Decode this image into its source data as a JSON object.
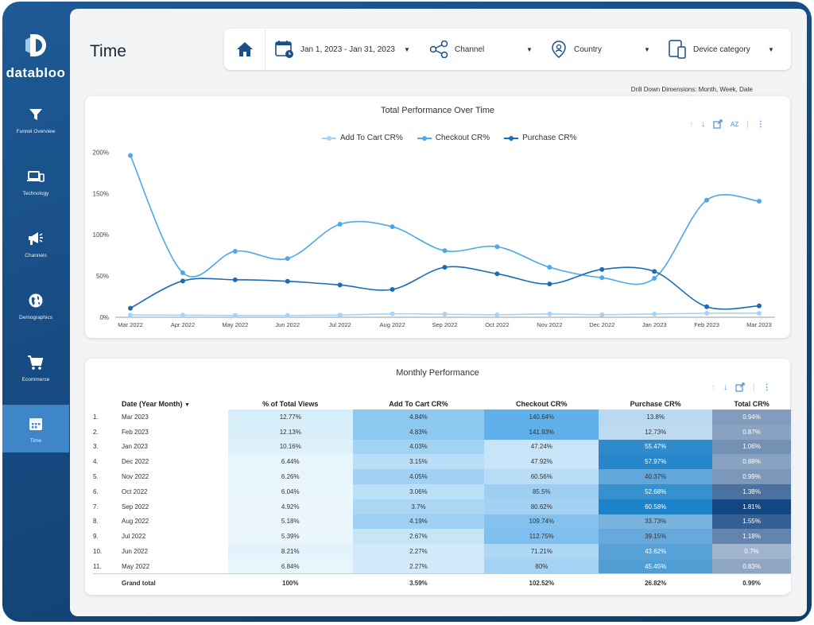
{
  "brand": {
    "name": "databloo"
  },
  "sidebar": {
    "items": [
      {
        "label": "Funnel Overview",
        "icon": "funnel-icon",
        "active": false
      },
      {
        "label": "Technology",
        "icon": "devices-icon",
        "active": false
      },
      {
        "label": "Channels",
        "icon": "megaphone-icon",
        "active": false
      },
      {
        "label": "Demographics",
        "icon": "globe-icon",
        "active": false
      },
      {
        "label": "Ecommerce",
        "icon": "cart-icon",
        "active": false
      },
      {
        "label": "Time",
        "icon": "calendar-icon",
        "active": true
      }
    ]
  },
  "header": {
    "title": "Time"
  },
  "filters": {
    "date_range": "Jan 1, 2023 - Jan 31, 2023",
    "channel": "Channel",
    "country": "Country",
    "device": "Device category"
  },
  "drill_note": "Drill Down Dimensions: Month, Week, Date",
  "chart_data": {
    "type": "line",
    "title": "Total Performance Over Time",
    "categories": [
      "Mar 2022",
      "Apr 2022",
      "May 2022",
      "Jun 2022",
      "Jul 2022",
      "Aug 2022",
      "Sep 2022",
      "Oct 2022",
      "Nov 2022",
      "Dec 2022",
      "Jan 2023",
      "Feb 2023",
      "Mar 2023"
    ],
    "y_ticks": [
      "0%",
      "50%",
      "100%",
      "150%",
      "200%"
    ],
    "ylim": [
      0,
      210
    ],
    "series": [
      {
        "name": "Add To Cart CR%",
        "color": "#a9d3f5",
        "values": [
          2.8,
          2.6,
          2.27,
          2.27,
          2.67,
          4.19,
          3.7,
          3.06,
          4.05,
          3.15,
          4.03,
          4.83,
          4.84
        ]
      },
      {
        "name": "Checkout CR%",
        "color": "#4aa8ec",
        "values": [
          196,
          54,
          80,
          71.21,
          112.75,
          109.74,
          80.62,
          85.5,
          60.56,
          47.92,
          47.24,
          141.93,
          140.64
        ]
      },
      {
        "name": "Purchase CR%",
        "color": "#1a6cb5",
        "values": [
          11,
          44,
          45.45,
          43.62,
          39.15,
          33.73,
          60.58,
          52.68,
          40.37,
          57.97,
          55.47,
          12.73,
          13.8
        ]
      }
    ]
  },
  "table": {
    "title": "Monthly Performance",
    "columns": [
      "Date (Year Month)",
      "% of Total Views",
      "Add To Cart CR%",
      "Checkout CR%",
      "Purchase CR%",
      "Total CR%"
    ],
    "rows": [
      [
        "1.",
        "Mar 2023",
        "12.77%",
        "4.84%",
        "140.64%",
        "13.8%",
        "0.94%"
      ],
      [
        "2.",
        "Feb 2023",
        "12.13%",
        "4.83%",
        "141.93%",
        "12.73%",
        "0.87%"
      ],
      [
        "3.",
        "Jan 2023",
        "10.16%",
        "4.03%",
        "47.24%",
        "55.47%",
        "1.06%"
      ],
      [
        "4.",
        "Dec 2022",
        "6.44%",
        "3.15%",
        "47.92%",
        "57.97%",
        "0.88%"
      ],
      [
        "5.",
        "Nov 2022",
        "6.26%",
        "4.05%",
        "60.56%",
        "40.37%",
        "0.99%"
      ],
      [
        "6.",
        "Oct 2022",
        "6.04%",
        "3.06%",
        "85.5%",
        "52.68%",
        "1.38%"
      ],
      [
        "7.",
        "Sep 2022",
        "4.92%",
        "3.7%",
        "80.62%",
        "60.58%",
        "1.81%"
      ],
      [
        "8.",
        "Aug 2022",
        "5.18%",
        "4.19%",
        "109.74%",
        "33.73%",
        "1.55%"
      ],
      [
        "9.",
        "Jul 2022",
        "5.39%",
        "2.67%",
        "112.75%",
        "39.15%",
        "1.18%"
      ],
      [
        "10.",
        "Jun 2022",
        "8.21%",
        "2.27%",
        "71.21%",
        "43.62%",
        "0.7%"
      ],
      [
        "11.",
        "May 2022",
        "6.84%",
        "2.27%",
        "80%",
        "45.45%",
        "0.83%"
      ]
    ],
    "total": [
      "Grand total",
      "100%",
      "3.59%",
      "102.52%",
      "26.82%",
      "0.99%"
    ]
  }
}
